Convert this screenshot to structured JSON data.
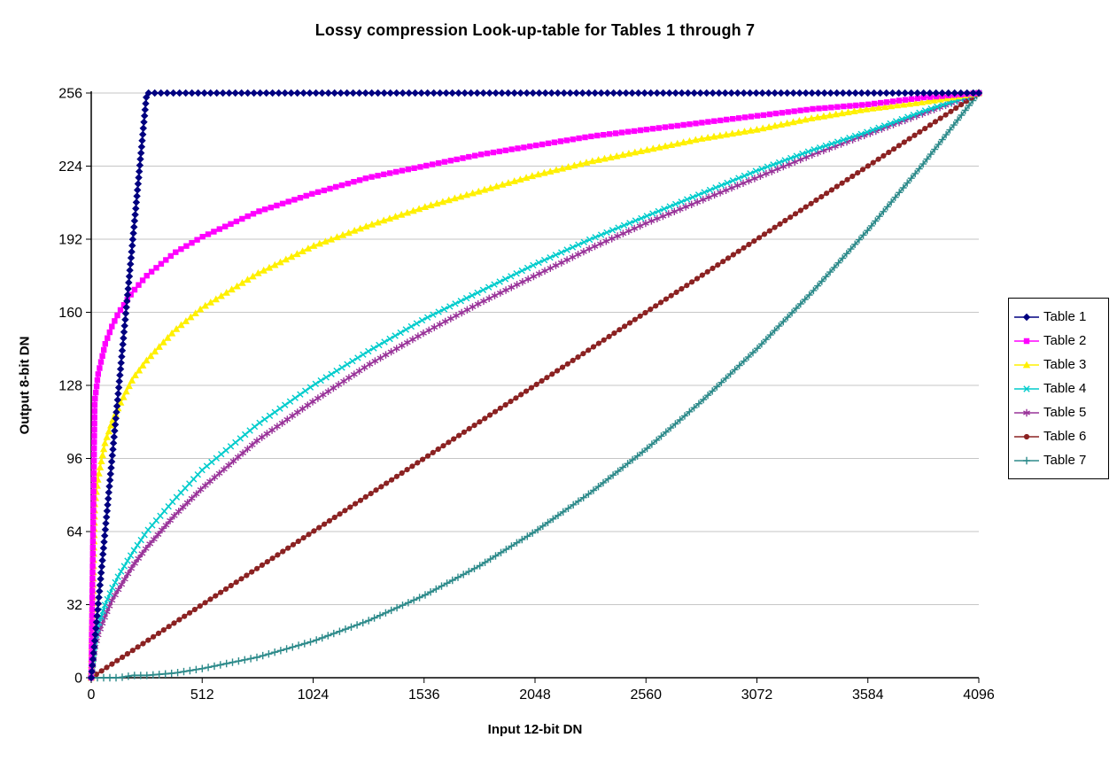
{
  "chart_data": {
    "type": "line",
    "title": "Lossy compression Look-up-table for Tables 1 through 7",
    "xlabel": "Input 12-bit DN",
    "ylabel": "Output 8-bit DN",
    "xlim": [
      0,
      4096
    ],
    "ylim": [
      0,
      256
    ],
    "x_ticks": [
      0,
      512,
      1024,
      1536,
      2048,
      2560,
      3072,
      3584,
      4096
    ],
    "y_ticks": [
      0,
      32,
      64,
      96,
      128,
      160,
      192,
      224,
      256
    ],
    "grid": "horizontal",
    "gridline_color": "#c6c6c6",
    "legend_position": "right",
    "x": [
      0,
      16,
      32,
      64,
      96,
      128,
      192,
      256,
      384,
      512,
      768,
      1024,
      1280,
      1536,
      1792,
      2048,
      2304,
      2560,
      2816,
      3072,
      3328,
      3584,
      3840,
      4096
    ],
    "series": [
      {
        "name": "Table 1",
        "color": "#000080",
        "marker": "diamond",
        "values": [
          0,
          16,
          32,
          64,
          96,
          128,
          192,
          256,
          256,
          256,
          256,
          256,
          256,
          256,
          256,
          256,
          256,
          256,
          256,
          256,
          256,
          256,
          256,
          256
        ]
      },
      {
        "name": "Table 2",
        "color": "#FF00FF",
        "marker": "square",
        "values": [
          0,
          121,
          133,
          146,
          154,
          160,
          169,
          176,
          186,
          193,
          204,
          212,
          219,
          224,
          229,
          233,
          237,
          240,
          243,
          246,
          249,
          251,
          254,
          256
        ]
      },
      {
        "name": "Table 3",
        "color": "#FFF000",
        "marker": "triangle",
        "values": [
          0,
          76,
          88,
          103,
          112,
          119,
          131,
          139,
          152,
          162,
          177,
          189,
          198,
          206,
          213,
          220,
          226,
          231,
          236,
          240,
          245,
          249,
          252,
          256
        ]
      },
      {
        "name": "Table 4",
        "color": "#00CCCC",
        "marker": "x",
        "values": [
          0,
          16,
          23,
          32,
          39,
          45,
          55,
          64,
          78,
          91,
          111,
          128,
          143,
          157,
          169,
          181,
          192,
          202,
          212,
          222,
          231,
          239,
          248,
          256
        ]
      },
      {
        "name": "Table 5",
        "color": "#993399",
        "marker": "star",
        "values": [
          0,
          13,
          19,
          27,
          34,
          39,
          49,
          57,
          71,
          83,
          104,
          121,
          137,
          151,
          164,
          176,
          188,
          199,
          209,
          219,
          229,
          238,
          247,
          256
        ]
      },
      {
        "name": "Table 6",
        "color": "#8B2222",
        "marker": "circle",
        "values": [
          0,
          1,
          2,
          4,
          6,
          8,
          12,
          16,
          24,
          32,
          48,
          64,
          80,
          96,
          112,
          128,
          144,
          160,
          176,
          192,
          208,
          224,
          240,
          256
        ]
      },
      {
        "name": "Table 7",
        "color": "#2E8B8B",
        "marker": "plus",
        "values": [
          0,
          0,
          0,
          0,
          0,
          0,
          1,
          1,
          2,
          4,
          9,
          16,
          25,
          36,
          49,
          64,
          81,
          100,
          121,
          144,
          169,
          196,
          225,
          256
        ]
      }
    ]
  }
}
